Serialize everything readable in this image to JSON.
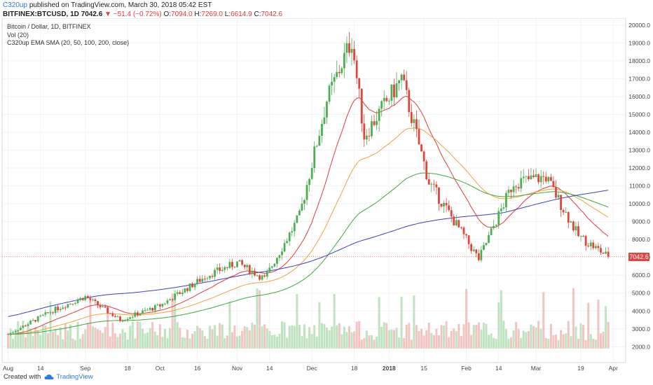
{
  "header": {
    "author": "C320up",
    "published": "published on TradingView.com, March 30, 2018 05:42 EST",
    "symbol": "BITFINEX:BTCUSD, 1D",
    "last": "7042.6",
    "change": "▼ −51.4 (−0.72%)",
    "o_label": "O:",
    "o": "7094.0",
    "h_label": "H:",
    "h": "7269.0",
    "l_label": "L:",
    "l": "6614.9",
    "c_label": "C:",
    "c": "7042.6"
  },
  "legend": {
    "line1": "Bitcoin / Dollar, 1D, BITFINEX",
    "line2": "Vol (20)",
    "line3": "C320up EMA SMA (20, 50, 100, 200, close)"
  },
  "price_tag": "7042.6",
  "footer": {
    "created": "Created with",
    "brand": "TradingView"
  },
  "colors": {
    "up": "#4caf50",
    "down": "#e0453a",
    "ema20": "#e5393d",
    "ema50": "#f3a03c",
    "ema100": "#3da93a",
    "sma200": "#3a3fc9",
    "volume_up": "#bfe3c1",
    "volume_down": "#f2c4c1",
    "last_line": "#e04545"
  },
  "chart_data": {
    "type": "candlestick",
    "y_axis_ticks": [
      "20000.0",
      "19000.0",
      "18000.0",
      "17000.0",
      "16000.0",
      "15000.0",
      "14000.0",
      "13000.0",
      "12000.0",
      "11000.0",
      "10000.0",
      "9000.0",
      "8000.0",
      "7000.0",
      "6000.0",
      "5000.0",
      "4000.0",
      "3000.0",
      "2000.0"
    ],
    "x_axis_ticks": [
      "Aug",
      "14",
      "Sep",
      "18",
      "Oct",
      "16",
      "Nov",
      "14",
      "Dec",
      "18",
      "2018",
      "15",
      "Feb",
      "14",
      "Mar",
      "19",
      "Apr"
    ],
    "ylim": [
      1700,
      20500
    ],
    "last_price": 7042.6,
    "ohlc_monthly_anchors": [
      {
        "date": "2017-08-01",
        "close": 2700
      },
      {
        "date": "2017-08-20",
        "close": 4100
      },
      {
        "date": "2017-09-01",
        "close": 4800
      },
      {
        "date": "2017-09-15",
        "close": 3500
      },
      {
        "date": "2017-10-01",
        "close": 4300
      },
      {
        "date": "2017-10-20",
        "close": 6000
      },
      {
        "date": "2017-11-01",
        "close": 6700
      },
      {
        "date": "2017-11-12",
        "close": 5800
      },
      {
        "date": "2017-11-26",
        "close": 9300
      },
      {
        "date": "2017-12-07",
        "close": 15800
      },
      {
        "date": "2017-12-17",
        "close": 19200
      },
      {
        "date": "2017-12-22",
        "close": 13800
      },
      {
        "date": "2018-01-06",
        "close": 17000
      },
      {
        "date": "2018-01-17",
        "close": 11200
      },
      {
        "date": "2018-02-06",
        "close": 6900
      },
      {
        "date": "2018-02-20",
        "close": 11200
      },
      {
        "date": "2018-03-05",
        "close": 11500
      },
      {
        "date": "2018-03-18",
        "close": 8200
      },
      {
        "date": "2018-03-30",
        "close": 7042.6
      }
    ],
    "series": [
      {
        "name": "EMA 20"
      },
      {
        "name": "EMA 50"
      },
      {
        "name": "EMA 100"
      },
      {
        "name": "SMA 200"
      }
    ]
  }
}
